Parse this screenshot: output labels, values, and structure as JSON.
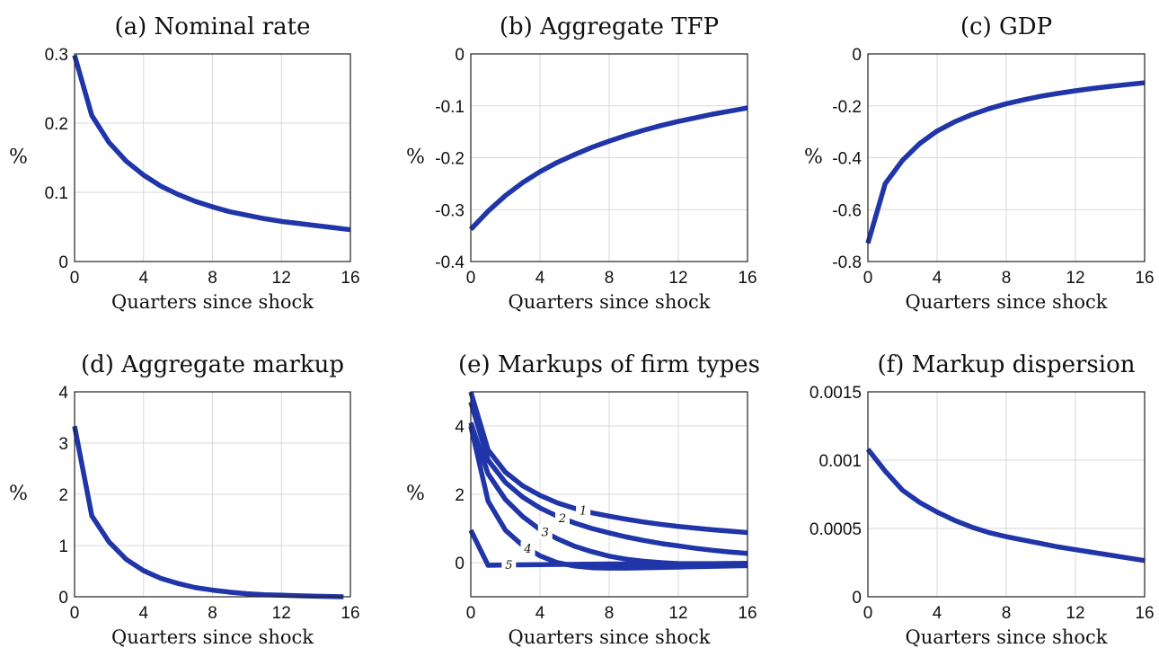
{
  "chart_data": [
    {
      "type": "line",
      "title": "(a) Nominal rate",
      "xlabel": "Quarters since shock",
      "ylabel": "%",
      "xlim": [
        0,
        16
      ],
      "ylim": [
        0,
        0.3
      ],
      "xticks": [
        "0",
        "4",
        "8",
        "12",
        "16"
      ],
      "yticks": [
        "0",
        "0.1",
        "0.2",
        "0.3"
      ],
      "grid": true,
      "series": [
        {
          "x": [
            0,
            1,
            2,
            3,
            4,
            5,
            6,
            7,
            8,
            9,
            10,
            11,
            12,
            13,
            14,
            15,
            16
          ],
          "y": [
            0.298,
            0.211,
            0.172,
            0.145,
            0.125,
            0.109,
            0.097,
            0.087,
            0.079,
            0.072,
            0.067,
            0.062,
            0.058,
            0.055,
            0.052,
            0.049,
            0.046
          ]
        }
      ]
    },
    {
      "type": "line",
      "title": "(b) Aggregate TFP",
      "xlabel": "Quarters since shock",
      "ylabel": "%",
      "xlim": [
        0,
        16
      ],
      "ylim": [
        -0.4,
        0
      ],
      "xticks": [
        "0",
        "4",
        "8",
        "12",
        "16"
      ],
      "yticks": [
        "-0.4",
        "-0.3",
        "-0.2",
        "-0.1",
        "0"
      ],
      "grid": true,
      "series": [
        {
          "x": [
            0,
            1,
            2,
            3,
            4,
            5,
            6,
            7,
            8,
            9,
            10,
            11,
            12,
            13,
            14,
            15,
            16
          ],
          "y": [
            -0.338,
            -0.303,
            -0.273,
            -0.248,
            -0.227,
            -0.209,
            -0.194,
            -0.18,
            -0.168,
            -0.157,
            -0.147,
            -0.138,
            -0.13,
            -0.123,
            -0.116,
            -0.11,
            -0.104
          ]
        }
      ]
    },
    {
      "type": "line",
      "title": "(c) GDP",
      "xlabel": "Quarters since shock",
      "ylabel": "%",
      "xlim": [
        0,
        16
      ],
      "ylim": [
        -0.8,
        0
      ],
      "xticks": [
        "0",
        "4",
        "8",
        "12",
        "16"
      ],
      "yticks": [
        "-0.8",
        "-0.6",
        "-0.4",
        "-0.2",
        "0"
      ],
      "grid": true,
      "series": [
        {
          "x": [
            0,
            1,
            2,
            3,
            4,
            5,
            6,
            7,
            8,
            9,
            10,
            11,
            12,
            13,
            14,
            15,
            16
          ],
          "y": [
            -0.73,
            -0.5,
            -0.41,
            -0.345,
            -0.297,
            -0.262,
            -0.234,
            -0.211,
            -0.192,
            -0.177,
            -0.163,
            -0.152,
            -0.142,
            -0.133,
            -0.125,
            -0.118,
            -0.111
          ]
        }
      ]
    },
    {
      "type": "line",
      "title": "(d) Aggregate markup",
      "xlabel": "Quarters since shock",
      "ylabel": "%",
      "xlim": [
        0,
        16
      ],
      "ylim": [
        0,
        4
      ],
      "xticks": [
        "0",
        "4",
        "8",
        "12",
        "16"
      ],
      "yticks": [
        "0",
        "1",
        "2",
        "3",
        "4"
      ],
      "grid": true,
      "series": [
        {
          "x": [
            0,
            1,
            2,
            3,
            4,
            5,
            6,
            7,
            8,
            9,
            10,
            11,
            12,
            13,
            14,
            15,
            15.6
          ],
          "y": [
            3.33,
            1.58,
            1.07,
            0.73,
            0.51,
            0.36,
            0.26,
            0.18,
            0.13,
            0.09,
            0.06,
            0.04,
            0.03,
            0.02,
            0.01,
            0.005,
            0.0
          ]
        }
      ]
    },
    {
      "type": "line",
      "title": "(e) Markups of firm types",
      "xlabel": "Quarters since shock",
      "ylabel": "%",
      "xlim": [
        0,
        16
      ],
      "ylim": [
        -1,
        5
      ],
      "xticks": [
        "0",
        "4",
        "8",
        "12",
        "16"
      ],
      "yticks": [
        "0",
        "2",
        "4"
      ],
      "grid": true,
      "series": [
        {
          "name": "1",
          "x": [
            0,
            1,
            2,
            3,
            4,
            5,
            6,
            7,
            8,
            9,
            10,
            11,
            12,
            13,
            14,
            15,
            16
          ],
          "y": [
            5.0,
            3.3,
            2.65,
            2.25,
            1.97,
            1.75,
            1.59,
            1.46,
            1.36,
            1.27,
            1.19,
            1.12,
            1.06,
            1.01,
            0.96,
            0.92,
            0.88
          ]
        },
        {
          "name": "2",
          "x": [
            0,
            1,
            2,
            3,
            4,
            5,
            6,
            7,
            8,
            9,
            10,
            11,
            12,
            13,
            14,
            15,
            16
          ],
          "y": [
            4.7,
            3.0,
            2.35,
            1.92,
            1.6,
            1.36,
            1.16,
            1.0,
            0.87,
            0.75,
            0.65,
            0.56,
            0.49,
            0.42,
            0.36,
            0.31,
            0.27
          ]
        },
        {
          "name": "3",
          "x": [
            0,
            1,
            2,
            3,
            4,
            5,
            6,
            7,
            8,
            9,
            10,
            11,
            12,
            13,
            14,
            15,
            16
          ],
          "y": [
            4.1,
            2.6,
            1.85,
            1.35,
            0.97,
            0.7,
            0.48,
            0.32,
            0.19,
            0.1,
            0.04,
            0.0,
            -0.03,
            -0.05,
            -0.06,
            -0.06,
            -0.06
          ]
        },
        {
          "name": "4",
          "x": [
            0,
            1,
            2,
            3,
            4,
            5,
            6,
            7,
            8,
            9,
            10,
            11,
            12,
            13,
            14,
            15,
            16
          ],
          "y": [
            4.0,
            1.8,
            0.95,
            0.5,
            0.2,
            0.0,
            -0.1,
            -0.15,
            -0.16,
            -0.16,
            -0.15,
            -0.14,
            -0.13,
            -0.12,
            -0.11,
            -0.1,
            -0.09
          ]
        },
        {
          "name": "5",
          "x": [
            0,
            1,
            2,
            4,
            6,
            8,
            10,
            12,
            14,
            16
          ],
          "y": [
            0.95,
            -0.08,
            -0.07,
            -0.06,
            -0.05,
            -0.04,
            -0.04,
            -0.03,
            -0.03,
            -0.02
          ]
        }
      ]
    },
    {
      "type": "line",
      "title": "(f) Markup dispersion",
      "xlabel": "Quarters since shock",
      "ylabel": "",
      "xlim": [
        0,
        16
      ],
      "ylim": [
        0,
        0.0015
      ],
      "xticks": [
        "0",
        "4",
        "8",
        "12",
        "16"
      ],
      "yticks": [
        "0",
        "0.0005",
        "0.001",
        "0.0015"
      ],
      "grid": true,
      "series": [
        {
          "x": [
            0,
            1,
            2,
            3,
            4,
            5,
            6,
            7,
            8,
            9,
            10,
            11,
            12,
            13,
            14,
            15,
            16
          ],
          "y": [
            0.00108,
            0.00092,
            0.00078,
            0.00069,
            0.00062,
            0.00056,
            0.00051,
            0.00047,
            0.00044,
            0.000415,
            0.00039,
            0.000365,
            0.000345,
            0.000325,
            0.000305,
            0.000285,
            0.000265
          ]
        }
      ]
    }
  ],
  "colors": {
    "line": "#1f35a8",
    "grid": "#d9d9d9",
    "axis": "#222222"
  }
}
